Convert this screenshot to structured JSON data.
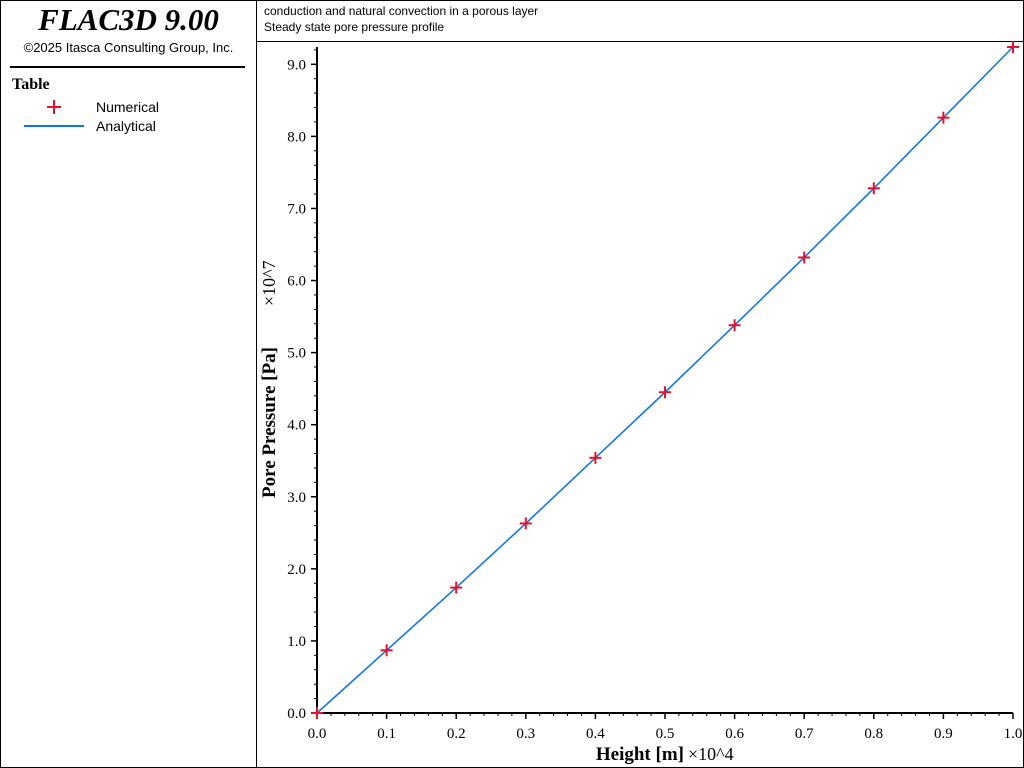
{
  "app": {
    "title": "FLAC3D 9.00",
    "copyright": "©2025 Itasca Consulting Group, Inc."
  },
  "legend": {
    "title": "Table",
    "items": [
      {
        "label": "Numerical",
        "marker": "plus",
        "color": "#e8102a"
      },
      {
        "label": "Analytical",
        "marker": "line",
        "color": "#1177e0"
      }
    ]
  },
  "header": {
    "line1": "conduction and natural convection in a porous layer",
    "line2": "Steady state pore pressure profile"
  },
  "chart_data": {
    "type": "line",
    "xlabel": "Height [m]",
    "xscale_label": "×10^4",
    "ylabel": "Pore Pressure [Pa]",
    "yscale_label": "×10^7",
    "xlim": [
      0.0,
      1.0
    ],
    "ylim": [
      0.0,
      9.24
    ],
    "x_ticks": [
      "0.0",
      "0.1",
      "0.2",
      "0.3",
      "0.4",
      "0.5",
      "0.6",
      "0.7",
      "0.8",
      "0.9",
      "1.0"
    ],
    "y_ticks": [
      "0.0",
      "1.0",
      "2.0",
      "3.0",
      "4.0",
      "5.0",
      "6.0",
      "7.0",
      "8.0",
      "9.0"
    ],
    "grid": false,
    "series": [
      {
        "name": "Numerical",
        "style": "markers",
        "color": "#e8102a",
        "x": [
          0.0,
          0.1,
          0.2,
          0.3,
          0.4,
          0.5,
          0.6,
          0.7,
          0.8,
          0.9,
          1.0
        ],
        "y": [
          0.0,
          0.87,
          1.74,
          2.63,
          3.54,
          4.45,
          5.38,
          6.32,
          7.28,
          8.26,
          9.24
        ]
      },
      {
        "name": "Analytical",
        "style": "line",
        "color": "#1177e0",
        "x": [
          0.0,
          0.1,
          0.2,
          0.3,
          0.4,
          0.5,
          0.6,
          0.7,
          0.8,
          0.9,
          1.0
        ],
        "y": [
          0.0,
          0.87,
          1.74,
          2.63,
          3.54,
          4.45,
          5.38,
          6.32,
          7.28,
          8.26,
          9.24
        ]
      }
    ]
  }
}
